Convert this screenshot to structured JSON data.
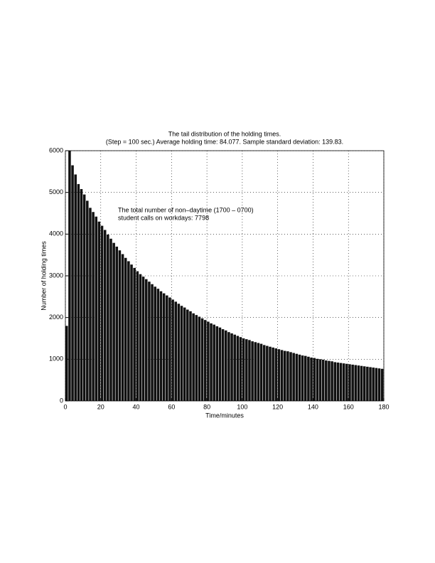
{
  "chart_data": {
    "type": "bar",
    "title": "The tail distribution of the holding times.",
    "subtitle": "(Step = 100 sec.) Average holding time: 84.077. Sample standard deviation: 139.83.",
    "xlabel": "Time/minutes",
    "ylabel": "Number of holding times",
    "annotations": [
      "The total number of non–daytime (1700 – 0700)",
      "student calls on workdays: 7798"
    ],
    "color": "#111111",
    "grid": true,
    "xlim": [
      0,
      180
    ],
    "xticks": [
      0,
      20,
      40,
      60,
      80,
      100,
      120,
      140,
      160,
      180
    ],
    "ylim": [
      0,
      6000
    ],
    "yticks": [
      0,
      1000,
      2000,
      3000,
      4000,
      5000,
      6000
    ],
    "x": [
      0,
      1.67,
      3.33,
      5,
      6.67,
      8.33,
      10,
      11.67,
      13.33,
      15,
      16.67,
      18.33,
      20,
      21.67,
      23.33,
      25,
      26.67,
      28.33,
      30,
      31.67,
      33.33,
      35,
      36.67,
      38.33,
      40,
      41.67,
      43.33,
      45,
      46.67,
      48.33,
      50,
      51.67,
      53.33,
      55,
      56.67,
      58.33,
      60,
      61.67,
      63.33,
      65,
      66.67,
      68.33,
      70,
      71.67,
      73.33,
      75,
      76.67,
      78.33,
      80,
      81.67,
      83.33,
      85,
      86.67,
      88.33,
      90,
      91.67,
      93.33,
      95,
      96.67,
      98.33,
      100,
      101.67,
      103.33,
      105,
      106.67,
      108.33,
      110,
      111.67,
      113.33,
      115,
      116.67,
      118.33,
      120,
      121.67,
      123.33,
      125,
      126.67,
      128.33,
      130,
      131.67,
      133.33,
      135,
      136.67,
      138.33,
      140,
      141.67,
      143.33,
      145,
      146.67,
      148.33,
      150,
      151.67,
      153.33,
      155,
      156.67,
      158.33,
      160,
      161.67,
      163.33,
      165,
      166.67,
      168.33,
      170,
      171.67,
      173.33,
      175,
      176.67,
      178.33
    ],
    "values": [
      1800,
      6000,
      5650,
      5430,
      5200,
      5080,
      4950,
      4800,
      4630,
      4530,
      4420,
      4300,
      4200,
      4100,
      3990,
      3890,
      3790,
      3700,
      3610,
      3520,
      3430,
      3350,
      3270,
      3190,
      3110,
      3040,
      2980,
      2920,
      2860,
      2800,
      2740,
      2690,
      2630,
      2580,
      2530,
      2480,
      2430,
      2380,
      2330,
      2280,
      2240,
      2190,
      2150,
      2100,
      2060,
      2020,
      1980,
      1940,
      1900,
      1860,
      1830,
      1790,
      1760,
      1720,
      1690,
      1650,
      1620,
      1590,
      1560,
      1530,
      1500,
      1480,
      1460,
      1430,
      1410,
      1390,
      1370,
      1340,
      1320,
      1300,
      1280,
      1260,
      1240,
      1220,
      1200,
      1190,
      1170,
      1150,
      1130,
      1110,
      1090,
      1080,
      1060,
      1040,
      1030,
      1010,
      1000,
      990,
      970,
      960,
      950,
      930,
      920,
      910,
      900,
      890,
      880,
      870,
      860,
      850,
      840,
      830,
      820,
      810,
      800,
      790,
      780,
      770
    ]
  }
}
